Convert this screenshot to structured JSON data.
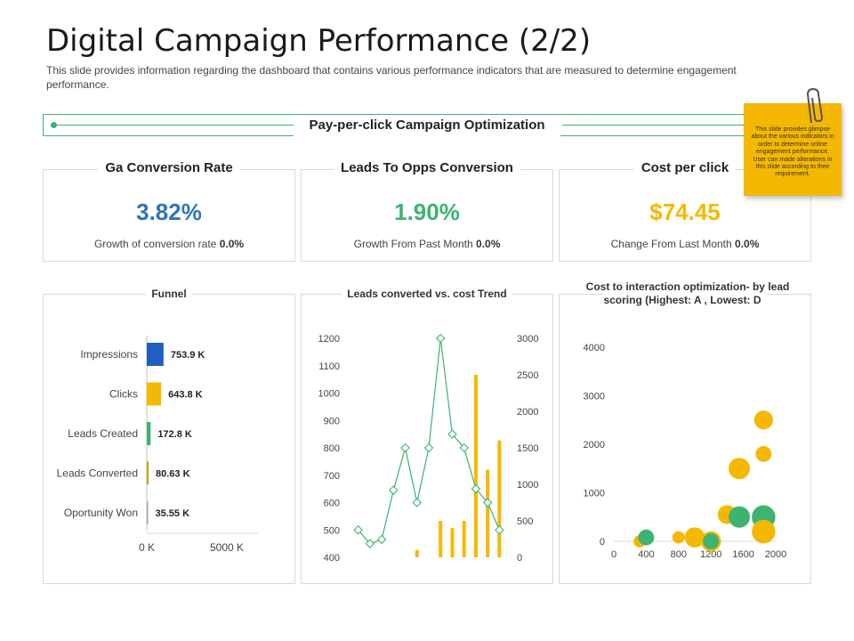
{
  "header": {
    "title": "Digital Campaign Performance (2/2)",
    "description": "This slide provides information regarding the dashboard that contains various performance indicators that are measured to determine engagement performance."
  },
  "section": {
    "label": "Pay-per-click Campaign Optimization"
  },
  "sticky_note": {
    "text": "This slide provides glimpse about the various indicators in order to determine online engagement performance. User can made alterations in this slide according to their requirement."
  },
  "kpis": [
    {
      "title": "Ga Conversion Rate",
      "value": "3.82%",
      "foot_label": "Growth of conversion rate",
      "foot_value": "0.0%",
      "color": "#2e75b6"
    },
    {
      "title": "Leads To Opps Conversion",
      "value": "1.90%",
      "foot_label": "Growth From Past Month",
      "foot_value": "0.0%",
      "color": "#3cb371"
    },
    {
      "title": "Cost per click",
      "value": "$74.45",
      "foot_label": "Change From Last Month",
      "foot_value": "0.0%",
      "color": "#f5b800"
    }
  ],
  "chart_data": [
    {
      "type": "bar",
      "orientation": "horizontal",
      "title": "Funnel",
      "categories": [
        "Impressions",
        "Clicks",
        "Leads Created",
        "Leads Converted",
        "Oportunity Won"
      ],
      "values": [
        753.9,
        643.8,
        172.8,
        80.63,
        35.55
      ],
      "value_labels": [
        "753.9 K",
        "643.8 K",
        "172.8 K",
        "80.63 K",
        "35.55 K"
      ],
      "bar_colors": [
        "#1f5fbf",
        "#f5b800",
        "#3cb371",
        "#c9a000",
        "#aaaaaa"
      ],
      "xlim": [
        0,
        5000
      ],
      "xtick_labels": [
        "0 K",
        "5000 K"
      ]
    },
    {
      "type": "line+bar",
      "title": "Leads converted vs. cost Trend",
      "x": [
        1,
        2,
        3,
        4,
        5,
        6,
        7,
        8,
        9,
        10,
        11,
        12,
        13
      ],
      "series": [
        {
          "name": "Leads converted",
          "type": "line",
          "axis": "left",
          "color": "#3cb371",
          "values": [
            500,
            450,
            465,
            645,
            800,
            600,
            800,
            1200,
            850,
            800,
            650,
            600,
            500
          ]
        },
        {
          "name": "Cost",
          "type": "bar",
          "axis": "right",
          "color": "#f5b800",
          "values": [
            0,
            0,
            0,
            0,
            0,
            100,
            0,
            500,
            400,
            500,
            2500,
            1200,
            1600
          ]
        }
      ],
      "ylim_left": [
        400,
        1200
      ],
      "yticks_left": [
        400,
        500,
        600,
        700,
        800,
        900,
        1000,
        1100,
        1200
      ],
      "ylim_right": [
        0,
        3000
      ],
      "yticks_right": [
        0,
        500,
        1000,
        1500,
        2000,
        2500,
        3000
      ]
    },
    {
      "type": "scatter",
      "title": "Cost to interaction optimization- by lead scoring (Highest: A , Lowest: D",
      "xlim": [
        0,
        2000
      ],
      "xticks": [
        0,
        400,
        800,
        1200,
        1600,
        2000
      ],
      "ylim": [
        0,
        4000
      ],
      "yticks": [
        0,
        1000,
        2000,
        3000,
        4000
      ],
      "points": [
        {
          "x": 320,
          "y": 0,
          "size": 300,
          "color": "#f5b800"
        },
        {
          "x": 400,
          "y": 80,
          "size": 500,
          "color": "#3cb371"
        },
        {
          "x": 800,
          "y": 80,
          "size": 300,
          "color": "#f5b800"
        },
        {
          "x": 1000,
          "y": 80,
          "size": 800,
          "color": "#f5b800"
        },
        {
          "x": 1200,
          "y": 0,
          "size": 800,
          "color": "#f5b800"
        },
        {
          "x": 1200,
          "y": 0,
          "size": 500,
          "color": "#3cb371"
        },
        {
          "x": 1400,
          "y": 550,
          "size": 700,
          "color": "#f5b800"
        },
        {
          "x": 1550,
          "y": 500,
          "size": 900,
          "color": "#3cb371"
        },
        {
          "x": 1550,
          "y": 1500,
          "size": 900,
          "color": "#f5b800"
        },
        {
          "x": 1850,
          "y": 500,
          "size": 1100,
          "color": "#3cb371"
        },
        {
          "x": 1850,
          "y": 200,
          "size": 1100,
          "color": "#f5b800"
        },
        {
          "x": 1850,
          "y": 1800,
          "size": 500,
          "color": "#f5b800"
        },
        {
          "x": 1850,
          "y": 2500,
          "size": 700,
          "color": "#f5b800"
        }
      ]
    }
  ]
}
